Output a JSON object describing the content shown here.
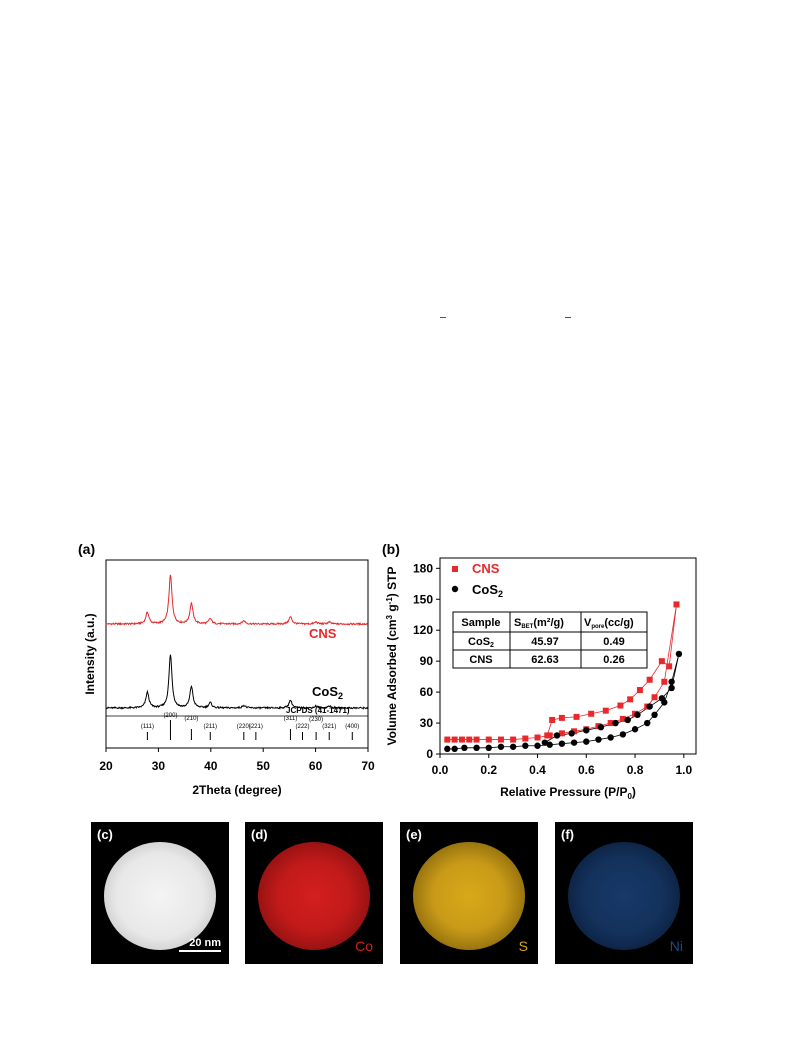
{
  "colors": {
    "cns": "#e8282b",
    "cos2": "#000000",
    "co_map": "#d21f1f",
    "s_map": "#d9a81a",
    "ni_map": "#1d4a86"
  },
  "panels": {
    "a": {
      "label": "(a)",
      "xlabel": "2Theta (degree)",
      "ylabel": "Intensity (a.u.)",
      "xticks": [
        "20",
        "30",
        "40",
        "50",
        "60",
        "70"
      ],
      "series_labels": {
        "cns": "CNS",
        "cos2_prefix": "CoS",
        "cos2_sub": "2"
      },
      "reference": "JCPDS (41-1471)",
      "hkl": [
        {
          "pos": 27.9,
          "label": "(111)"
        },
        {
          "pos": 32.3,
          "label": "(200)"
        },
        {
          "pos": 36.3,
          "label": "(210)"
        },
        {
          "pos": 39.9,
          "label": "(211)"
        },
        {
          "pos": 46.3,
          "label": "(220)"
        },
        {
          "pos": 48.6,
          "label": "(221)"
        },
        {
          "pos": 55.2,
          "label": "(311)"
        },
        {
          "pos": 57.5,
          "label": "(222)"
        },
        {
          "pos": 60.1,
          "label": "(230)"
        },
        {
          "pos": 62.6,
          "label": "(321)"
        },
        {
          "pos": 67.0,
          "label": "(400)"
        }
      ]
    },
    "b": {
      "label": "(b)",
      "xlabel_prefix": "Relative Pressure (P/P",
      "xlabel_sub": "0",
      "xlabel_suffix": ")",
      "ylabel_prefix": "Volume Adsorbed (cm",
      "ylabel_sup1": "3",
      "ylabel_mid": " g",
      "ylabel_sup2": "-1",
      "ylabel_suffix": ") STP",
      "xticks": [
        "0.0",
        "0.2",
        "0.4",
        "0.6",
        "0.8",
        "1.0"
      ],
      "yticks": [
        "0",
        "30",
        "60",
        "90",
        "120",
        "150",
        "180"
      ],
      "legend": {
        "cns": "CNS",
        "cos2_prefix": "CoS",
        "cos2_sub": "2"
      },
      "table": {
        "h1": "Sample",
        "h2_main": "S",
        "h2_sub": "BET",
        "h2_tail": "(m²/g)",
        "h3_main": "V",
        "h3_sub": "pore",
        "h3_tail": "(cc/g)",
        "r1_sample": "CoS",
        "r1_sample_sub": "2",
        "r1_sbet": "45.97",
        "r1_vpore": "0.49",
        "r2_sample": "CNS",
        "r2_sbet": "62.63",
        "r2_vpore": "0.26"
      }
    },
    "c": {
      "label": "(c)",
      "scale_bar": "20 nm"
    },
    "d": {
      "label": "(d)",
      "element": "Co"
    },
    "e": {
      "label": "(e)",
      "element": "S"
    },
    "f": {
      "label": "(f)",
      "element": "Ni"
    }
  },
  "chart_data": [
    {
      "type": "line",
      "title": "",
      "xlabel": "2Theta (degree)",
      "ylabel": "Intensity (a.u.)",
      "xlim": [
        20,
        70
      ],
      "series": [
        {
          "name": "CNS",
          "peaks": [
            [
              27.9,
              0.18
            ],
            [
              32.3,
              0.75
            ],
            [
              36.3,
              0.32
            ],
            [
              39.9,
              0.08
            ],
            [
              46.3,
              0.05
            ],
            [
              55.2,
              0.11
            ],
            [
              60.1,
              0.03
            ],
            [
              62.6,
              0.03
            ]
          ]
        },
        {
          "name": "CoS2",
          "peaks": [
            [
              27.9,
              0.24
            ],
            [
              32.3,
              0.82
            ],
            [
              36.3,
              0.33
            ],
            [
              39.9,
              0.08
            ],
            [
              46.3,
              0.04
            ],
            [
              55.2,
              0.12
            ],
            [
              60.1,
              0.03
            ],
            [
              62.6,
              0.03
            ]
          ]
        }
      ]
    },
    {
      "type": "line",
      "title": "",
      "xlabel": "Relative Pressure (P/P0)",
      "ylabel": "Volume Adsorbed (cm3 g-1) STP",
      "xlim": [
        0.0,
        1.05
      ],
      "ylim": [
        0,
        190
      ],
      "series": [
        {
          "name": "CNS",
          "adsorption": [
            [
              0.03,
              14
            ],
            [
              0.06,
              14
            ],
            [
              0.09,
              14
            ],
            [
              0.12,
              14
            ],
            [
              0.15,
              14
            ],
            [
              0.2,
              14
            ],
            [
              0.25,
              14
            ],
            [
              0.3,
              14
            ],
            [
              0.35,
              15
            ],
            [
              0.4,
              16
            ],
            [
              0.45,
              18
            ],
            [
              0.5,
              20
            ],
            [
              0.55,
              22
            ],
            [
              0.6,
              24
            ],
            [
              0.65,
              27
            ],
            [
              0.7,
              30
            ],
            [
              0.75,
              34
            ],
            [
              0.8,
              39
            ],
            [
              0.85,
              46
            ],
            [
              0.88,
              55
            ],
            [
              0.92,
              70
            ],
            [
              0.97,
              145
            ]
          ],
          "desorption": [
            [
              0.97,
              145
            ],
            [
              0.94,
              85
            ],
            [
              0.91,
              90
            ],
            [
              0.86,
              72
            ],
            [
              0.82,
              62
            ],
            [
              0.78,
              53
            ],
            [
              0.74,
              47
            ],
            [
              0.68,
              42
            ],
            [
              0.62,
              39
            ],
            [
              0.56,
              36
            ],
            [
              0.5,
              35
            ],
            [
              0.46,
              33
            ],
            [
              0.44,
              18
            ]
          ]
        },
        {
          "name": "CoS2",
          "adsorption": [
            [
              0.03,
              5
            ],
            [
              0.06,
              5
            ],
            [
              0.1,
              6
            ],
            [
              0.15,
              6
            ],
            [
              0.2,
              6
            ],
            [
              0.25,
              7
            ],
            [
              0.3,
              7
            ],
            [
              0.35,
              8
            ],
            [
              0.4,
              8
            ],
            [
              0.45,
              9
            ],
            [
              0.5,
              10
            ],
            [
              0.55,
              11
            ],
            [
              0.6,
              12
            ],
            [
              0.65,
              14
            ],
            [
              0.7,
              16
            ],
            [
              0.75,
              19
            ],
            [
              0.8,
              24
            ],
            [
              0.85,
              30
            ],
            [
              0.88,
              38
            ],
            [
              0.92,
              50
            ],
            [
              0.95,
              70
            ],
            [
              0.98,
              97
            ]
          ],
          "desorption": [
            [
              0.98,
              97
            ],
            [
              0.95,
              64
            ],
            [
              0.91,
              54
            ],
            [
              0.86,
              46
            ],
            [
              0.81,
              38
            ],
            [
              0.77,
              33
            ],
            [
              0.72,
              30
            ],
            [
              0.66,
              26
            ],
            [
              0.6,
              23
            ],
            [
              0.54,
              20
            ],
            [
              0.48,
              18
            ],
            [
              0.43,
              11
            ]
          ]
        }
      ]
    }
  ]
}
